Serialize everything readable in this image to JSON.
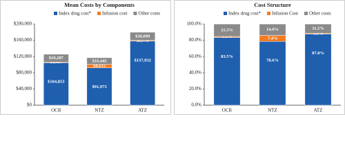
{
  "chart_data": [
    {
      "type": "stacked_bar",
      "title": "Mean Costs by Components",
      "categories": [
        "OCR",
        "NTZ",
        "ATZ"
      ],
      "series": [
        {
          "name": "Index drug cost*",
          "color": "#1f5fae",
          "values": [
            104853,
            91973,
            157932
          ],
          "value_labels": [
            "$104,853",
            "$91,973",
            "$157,932"
          ]
        },
        {
          "name": "Infusion cost",
          "color": "#f47b20",
          "values": [
            1457,
            8615,
            1779
          ],
          "value_labels": [
            "$1,457",
            "$8,615",
            "$1,779"
          ]
        },
        {
          "name": "Other costs",
          "color": "#8a8a8a",
          "values": [
            19287,
            16445,
            20098
          ],
          "value_labels": [
            "$19,287",
            "$16,445",
            "$20,098"
          ]
        }
      ],
      "ylim": [
        0,
        200000
      ],
      "yticks": [
        {
          "value": 0,
          "label": "$0"
        },
        {
          "value": 40000,
          "label": "$40,000"
        },
        {
          "value": 80000,
          "label": "$80,000"
        },
        {
          "value": 120000,
          "label": "$120,000"
        },
        {
          "value": 160000,
          "label": "$160,000"
        },
        {
          "value": 200000,
          "label": "$200,000"
        }
      ]
    },
    {
      "type": "stacked_bar",
      "title": "Cost Structure",
      "categories": [
        "OCR",
        "NTZ",
        "ATZ"
      ],
      "series": [
        {
          "name": "Index drug cost*",
          "color": "#1f5fae",
          "values": [
            83.5,
            78.6,
            87.8
          ],
          "value_labels": [
            "83.5%",
            "78.6%",
            "87.8%"
          ]
        },
        {
          "name": "Infusion Cost",
          "color": "#f47b20",
          "values": [
            1.2,
            7.4,
            1.0
          ],
          "value_labels": [
            "1.2%",
            "7.4%",
            "1.0%"
          ]
        },
        {
          "name": "Other costs",
          "color": "#8a8a8a",
          "values": [
            15.3,
            14.0,
            11.2
          ],
          "value_labels": [
            "15.3%",
            "14.0%",
            "11.2%"
          ]
        }
      ],
      "ylim": [
        0,
        100
      ],
      "yticks": [
        {
          "value": 0,
          "label": "0.0%"
        },
        {
          "value": 20,
          "label": "20.0%"
        },
        {
          "value": 40,
          "label": "40.0%"
        },
        {
          "value": 60,
          "label": "60.0%"
        },
        {
          "value": 80,
          "label": "80.0%"
        },
        {
          "value": 100,
          "label": "100.0%"
        }
      ]
    }
  ]
}
